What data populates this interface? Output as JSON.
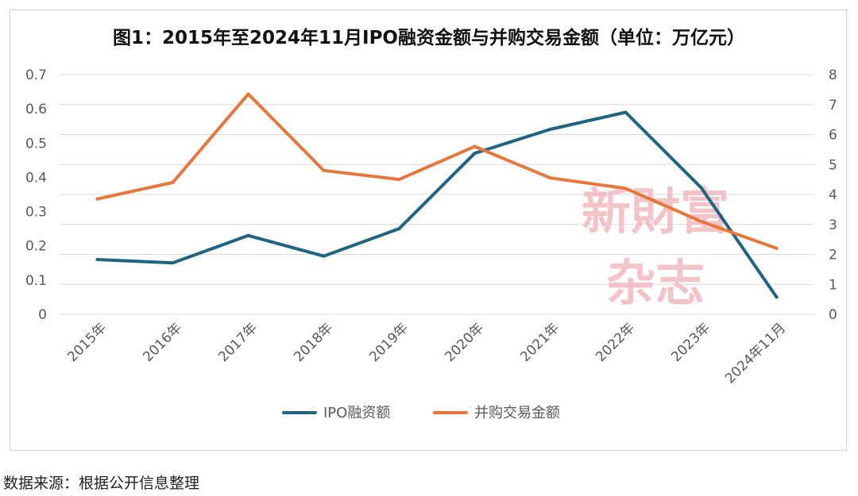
{
  "chart_data": {
    "type": "line",
    "title": "图1：2015年至2024年11月IPO融资金额与并购交易金额（单位：万亿元）",
    "categories": [
      "2015年",
      "2016年",
      "2017年",
      "2018年",
      "2019年",
      "2020年",
      "2021年",
      "2022年",
      "2023年",
      "2024年11月"
    ],
    "series": [
      {
        "name": "IPO融资额",
        "axis": "left",
        "color": "#1f6482",
        "values": [
          0.16,
          0.15,
          0.23,
          0.17,
          0.25,
          0.47,
          0.54,
          0.59,
          0.37,
          0.05
        ]
      },
      {
        "name": "并购交易金额",
        "axis": "right",
        "color": "#e8763a",
        "values": [
          3.85,
          4.4,
          7.35,
          4.8,
          4.5,
          5.6,
          4.55,
          4.2,
          3.1,
          2.2
        ]
      }
    ],
    "y_left": {
      "min": 0,
      "max": 0.7,
      "ticks": [
        "0",
        "0.1",
        "0.2",
        "0.3",
        "0.4",
        "0.5",
        "0.6",
        "0.7"
      ]
    },
    "y_right": {
      "min": 0,
      "max": 8,
      "ticks": [
        "0",
        "1",
        "2",
        "3",
        "4",
        "5",
        "6",
        "7",
        "8"
      ]
    },
    "grid": true,
    "legend_position": "bottom"
  },
  "watermark": {
    "line1": "新財富",
    "line2": "杂志",
    "color": "#f2b9bd"
  },
  "source_note": "数据来源：根据公开信息整理"
}
